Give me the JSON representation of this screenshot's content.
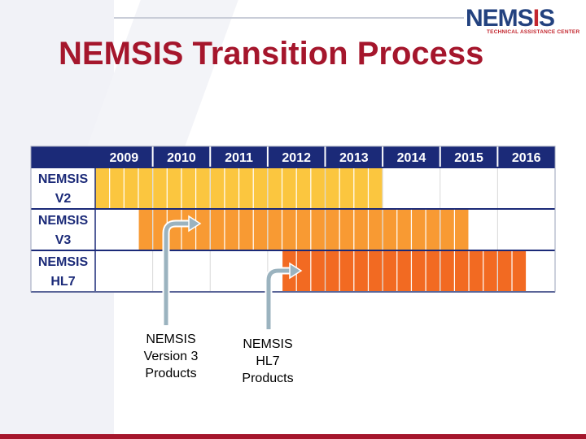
{
  "title": "NEMSIS Transition Process",
  "logo": {
    "name_part1": "NEMS",
    "name_part2": "S",
    "subtitle": "TECHNICAL ASSISTANCE CENTER"
  },
  "colors": {
    "title": "#a5162c",
    "header_bg": "#1b2a78",
    "v2": "#fbc63f",
    "v3": "#f89a33",
    "hl7": "#f26a22",
    "arrow": "#9bb3bf"
  },
  "chart_data": {
    "type": "table",
    "years": [
      "2009",
      "2010",
      "2011",
      "2012",
      "2013",
      "2014",
      "2015",
      "2016"
    ],
    "rows": [
      {
        "line1": "NEMSIS",
        "line2": "V2",
        "start_quarter": 0,
        "end_quarter": 20,
        "color": "#fbc63f"
      },
      {
        "line1": "NEMSIS",
        "line2": "V3",
        "start_quarter": 3,
        "end_quarter": 26,
        "color": "#f89a33"
      },
      {
        "line1": "NEMSIS",
        "line2": "HL7",
        "start_quarter": 13,
        "end_quarter": 30,
        "color": "#f26a22"
      }
    ]
  },
  "annotations": [
    {
      "lines": [
        "NEMSIS",
        "Version 3",
        "Products"
      ]
    },
    {
      "lines": [
        "NEMSIS",
        "HL7",
        "Products"
      ]
    }
  ]
}
